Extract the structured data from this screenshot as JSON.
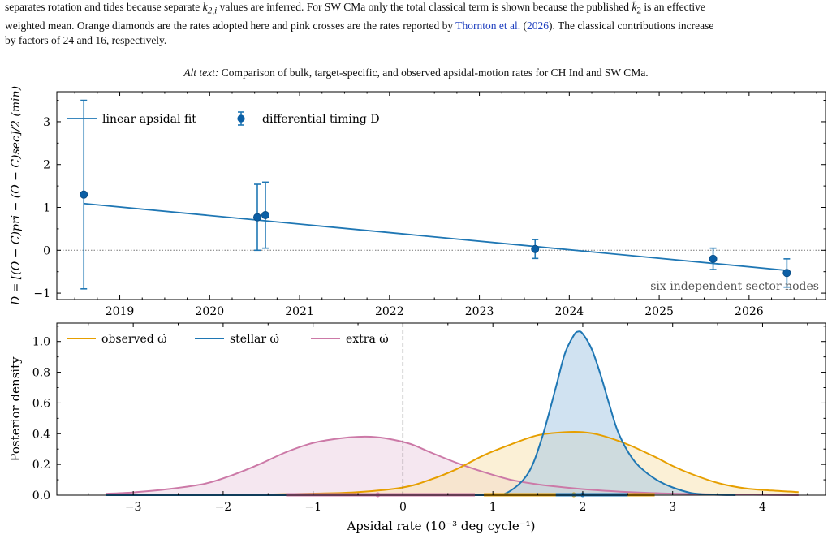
{
  "caption": {
    "line1_pre": "separates rotation and tides because separate ",
    "k2i": "k",
    "k2i_sub": "2,i",
    "line1_mid": " values are inferred. For SW CMa only the total classical term is shown because the published ",
    "k2bar": "k̄",
    "k2bar_sub": "2",
    "line1_post": " is an effective",
    "line2_pre": "weighted mean. Orange diamonds are the rates adopted here and pink crosses are the rates reported by ",
    "cite_name": "Thornton et al.",
    "cite_year_open": " (",
    "cite_year": "2026",
    "cite_year_close": "). The classical contributions increase",
    "line3": "by factors of 24 and 16, respectively."
  },
  "alt_text": {
    "label": "Alt text:",
    "text": " Comparison of bulk, target-specific, and observed apsidal-motion rates for CH Ind and SW CMa."
  },
  "colors": {
    "blue": "#1f77b4",
    "dark_blue": "#0b5fa5",
    "orange": "#e69f00",
    "pink": "#cc79a7",
    "fill_blue": "#a9cbe6",
    "fill_orange": "#f7e3b5",
    "fill_pink": "#ecd3e4"
  },
  "chart_data": [
    {
      "type": "scatter",
      "ylabel": "D = [(O − C)pri − (O − C)sec]/2 (min)",
      "xlim": [
        2018.3,
        2026.85
      ],
      "ylim": [
        -1.15,
        3.7
      ],
      "xticks": [
        2019,
        2020,
        2021,
        2022,
        2023,
        2024,
        2025,
        2026
      ],
      "yticks": [
        -1,
        0,
        1,
        2,
        3
      ],
      "legend": {
        "placement": "top-left",
        "fit_label": "linear apsidal fit",
        "points_label": "differential timing D"
      },
      "annotation": "six independent sector nodes",
      "zero_line": true,
      "points": [
        {
          "x": 2018.6,
          "y": 1.3,
          "err": 2.2
        },
        {
          "x": 2020.53,
          "y": 0.77,
          "err": 0.77
        },
        {
          "x": 2020.62,
          "y": 0.82,
          "err": 0.77
        },
        {
          "x": 2023.62,
          "y": 0.03,
          "err": 0.22
        },
        {
          "x": 2025.6,
          "y": -0.2,
          "err": 0.25
        },
        {
          "x": 2026.42,
          "y": -0.53,
          "err": 0.33
        }
      ],
      "fit": {
        "x": [
          2018.6,
          2026.42
        ],
        "y": [
          1.09,
          -0.47
        ]
      }
    },
    {
      "type": "area",
      "xlabel": "Apsidal rate (10⁻³ deg cycle⁻¹)",
      "ylabel": "Posterior density",
      "xlim": [
        -3.85,
        4.7
      ],
      "ylim": [
        0,
        1.12
      ],
      "xticks": [
        -3,
        -2,
        -1,
        0,
        1,
        2,
        3,
        4
      ],
      "yticks": [
        0.0,
        0.2,
        0.4,
        0.6,
        0.8,
        1.0
      ],
      "legend": {
        "placement": "top-left"
      },
      "vline_x": 0,
      "series": [
        {
          "name": "observed ω̇",
          "color_key": "orange",
          "x": [
            -3.3,
            -2.5,
            -2.0,
            -1.5,
            -1.0,
            -0.5,
            0.0,
            0.3,
            0.6,
            0.9,
            1.2,
            1.5,
            1.8,
            2.0,
            2.2,
            2.5,
            2.8,
            3.0,
            3.2,
            3.5,
            3.8,
            4.1,
            4.4
          ],
          "y": [
            0.0,
            0.0,
            0.002,
            0.005,
            0.01,
            0.02,
            0.05,
            0.1,
            0.17,
            0.26,
            0.33,
            0.39,
            0.41,
            0.41,
            0.39,
            0.33,
            0.25,
            0.19,
            0.14,
            0.08,
            0.045,
            0.03,
            0.02
          ]
        },
        {
          "name": "stellar ω̇",
          "color_key": "blue",
          "x": [
            -3.3,
            0.5,
            1.0,
            1.2,
            1.4,
            1.55,
            1.7,
            1.8,
            1.9,
            1.95,
            2.0,
            2.1,
            2.2,
            2.3,
            2.4,
            2.55,
            2.7,
            2.85,
            3.0,
            3.2,
            3.4,
            3.7
          ],
          "y": [
            0.0,
            0.0,
            0.0,
            0.03,
            0.15,
            0.38,
            0.7,
            0.92,
            1.04,
            1.065,
            1.05,
            0.95,
            0.78,
            0.58,
            0.4,
            0.24,
            0.15,
            0.09,
            0.05,
            0.015,
            0.004,
            0.0
          ]
        },
        {
          "name": "extra ω̇",
          "color_key": "pink",
          "x": [
            -3.3,
            -3.0,
            -2.6,
            -2.2,
            -1.9,
            -1.6,
            -1.3,
            -1.0,
            -0.7,
            -0.5,
            -0.3,
            -0.1,
            0.1,
            0.3,
            0.6,
            0.9,
            1.2,
            1.5,
            1.8,
            2.2,
            2.6,
            3.0,
            3.5,
            4.0,
            4.4
          ],
          "y": [
            0.01,
            0.018,
            0.04,
            0.075,
            0.13,
            0.2,
            0.28,
            0.34,
            0.37,
            0.38,
            0.378,
            0.36,
            0.33,
            0.28,
            0.21,
            0.15,
            0.1,
            0.07,
            0.05,
            0.03,
            0.018,
            0.01,
            0.005,
            0.002,
            0.0
          ]
        }
      ],
      "intervals": [
        {
          "series": "extra",
          "lo": -1.3,
          "hi": 0.8,
          "median": -0.28,
          "color_key": "pink"
        },
        {
          "series": "observed",
          "lo": 0.9,
          "hi": 2.8,
          "median": 1.9,
          "color_key": "orange"
        },
        {
          "series": "stellar",
          "lo": 1.7,
          "hi": 2.5,
          "median": 2.0,
          "color_key": "blue"
        }
      ]
    }
  ]
}
